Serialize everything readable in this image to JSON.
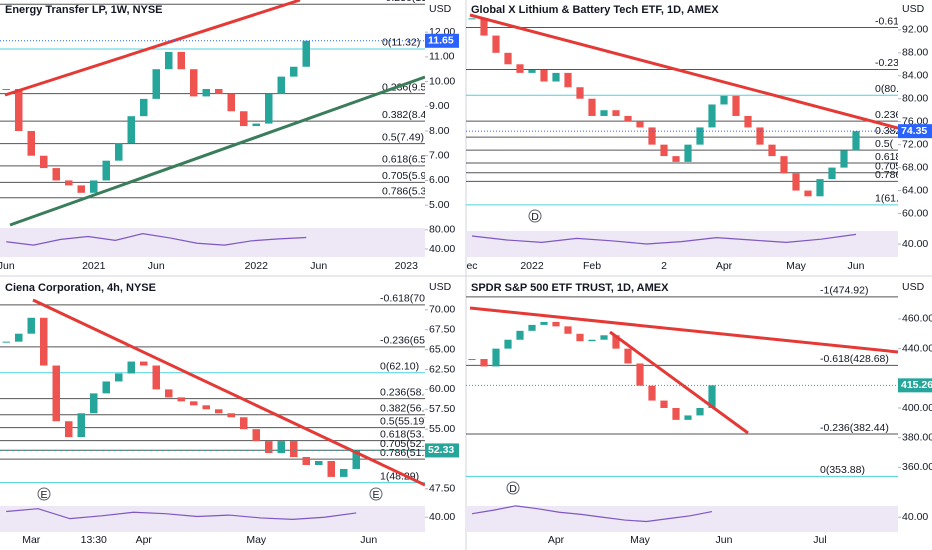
{
  "chart_data": [
    {
      "type": "candlestick",
      "title": "Energy Transfer LP, 1W, NYSE",
      "currency": "USD",
      "categories": [
        "Jun",
        null,
        null,
        null,
        null,
        null,
        null,
        "2021",
        null,
        null,
        null,
        null,
        "Jun",
        null,
        null,
        null,
        null,
        null,
        null,
        null,
        "2022",
        null,
        null,
        null,
        null,
        "Jun",
        null,
        null,
        null,
        null,
        null,
        null,
        "2023",
        null
      ],
      "values": [
        9.7,
        8.0,
        7.0,
        6.5,
        6.0,
        5.8,
        5.5,
        6.0,
        6.8,
        7.5,
        8.6,
        9.3,
        10.5,
        11.2,
        10.5,
        9.4,
        9.7,
        9.5,
        8.8,
        8.2,
        8.3,
        9.5,
        10.2,
        10.6,
        11.65,
        null,
        null,
        null,
        null,
        null,
        null,
        null,
        null,
        null
      ],
      "ylim": [
        4.4,
        13.3
      ],
      "yticks": [
        {
          "value": 12,
          "label": "12.00"
        },
        {
          "value": 11,
          "label": "11.00"
        },
        {
          "value": 10,
          "label": "10.00"
        },
        {
          "value": 9,
          "label": "9.00"
        },
        {
          "value": 8,
          "label": "8.00"
        },
        {
          "value": 7,
          "label": "7.00"
        },
        {
          "value": 6,
          "label": "6.00"
        },
        {
          "value": 5,
          "label": "5.00"
        }
      ],
      "levels": [
        {
          "value": 13.13,
          "label": "-0.236(13.1",
          "color": "#555555"
        },
        {
          "value": 11.32,
          "label": "0(11.32)",
          "color": "#4dd0e1"
        },
        {
          "value": 9.51,
          "label": "0.236(9.51)",
          "color": "#555555"
        },
        {
          "value": 8.4,
          "label": "0.382(8.40)",
          "color": "#555555"
        },
        {
          "value": 7.49,
          "label": "0.5(7.49)",
          "color": "#555555"
        },
        {
          "value": 6.59,
          "label": "0.618(6.59)",
          "color": "#555555"
        },
        {
          "value": 5.92,
          "label": "0.705(5.92)",
          "color": "#555555"
        },
        {
          "value": 5.3,
          "label": "0.786(5.30)",
          "color": "#555555"
        }
      ],
      "tag_color": "#2962ff",
      "up_color": "#26a69a",
      "down_color": "#ef5350",
      "oscillator": {
        "ylim": [
          17,
          90
        ],
        "yticks": [
          {
            "value": 80,
            "label": "80.00"
          },
          {
            "value": 40,
            "label": "40.00"
          }
        ],
        "values": [
          55,
          48,
          60,
          66,
          58,
          72,
          63,
          52,
          48,
          57,
          61,
          64
        ],
        "color": "#7e57c2"
      },
      "events": []
    },
    {
      "type": "candlestick",
      "title": "Global X Lithium & Battery Tech ETF, 1D, AMEX",
      "currency": "USD",
      "categories": [
        "ec",
        null,
        null,
        null,
        null,
        "2022",
        null,
        null,
        null,
        null,
        "Feb",
        null,
        null,
        null,
        null,
        null,
        "2",
        null,
        null,
        null,
        null,
        "Apr",
        null,
        null,
        null,
        null,
        null,
        "May",
        null,
        null,
        null,
        null,
        "Jun",
        null,
        null,
        null
      ],
      "values": [
        94,
        91,
        88,
        86,
        84.5,
        85,
        83,
        84.5,
        82,
        80,
        77,
        78,
        77,
        76,
        75,
        72,
        70,
        69,
        72,
        75,
        79,
        80.5,
        77,
        75,
        72,
        70,
        67,
        64,
        63,
        66,
        68,
        71,
        74.35,
        null,
        null,
        null
      ],
      "ylim": [
        58,
        97.2
      ],
      "yticks": [
        {
          "value": 92,
          "label": "92.00"
        },
        {
          "value": 88,
          "label": "88.00"
        },
        {
          "value": 84,
          "label": "84.00"
        },
        {
          "value": 80,
          "label": "80.00"
        },
        {
          "value": 76,
          "label": "76.00"
        },
        {
          "value": 72,
          "label": "72.00"
        },
        {
          "value": 68,
          "label": "68.00"
        },
        {
          "value": 64,
          "label": "64.00"
        },
        {
          "value": 60,
          "label": "60.00"
        }
      ],
      "levels": [
        {
          "value": 92.4,
          "label": "-0.61",
          "color": "#555555"
        },
        {
          "value": 85.1,
          "label": "-0.23",
          "color": "#555555"
        },
        {
          "value": 80.6,
          "label": "0(80.",
          "color": "#4dd0e1"
        },
        {
          "value": 76.1,
          "label": "0.236",
          "color": "#555555"
        },
        {
          "value": 73.3,
          "label": "0.382",
          "color": "#555555"
        },
        {
          "value": 71.05,
          "label": "0.5(",
          "color": "#555555"
        },
        {
          "value": 68.8,
          "label": "0.618",
          "color": "#555555"
        },
        {
          "value": 67.1,
          "label": "0.705",
          "color": "#555555"
        },
        {
          "value": 65.6,
          "label": "0.786",
          "color": "#555555"
        },
        {
          "value": 61.5,
          "label": "1(61.",
          "color": "#4dd0e1"
        }
      ],
      "tag_color": "#2962ff",
      "up_color": "#26a69a",
      "down_color": "#ef5350",
      "oscillator": {
        "ylim": [
          20,
          60
        ],
        "yticks": [
          {
            "value": 40,
            "label": "40.00"
          }
        ],
        "values": [
          50,
          45,
          42,
          47,
          44,
          40,
          43,
          48,
          45,
          42,
          46,
          52
        ],
        "color": "#7e57c2"
      },
      "events": [
        "D"
      ]
    },
    {
      "type": "candlestick",
      "title": "Ciena Corporation, 4h, NYSE",
      "currency": "USD",
      "categories": [
        null,
        null,
        "Mar",
        null,
        null,
        null,
        null,
        "13:30",
        null,
        null,
        null,
        "Apr",
        null,
        null,
        null,
        null,
        null,
        null,
        null,
        null,
        "May",
        null,
        null,
        null,
        null,
        null,
        null,
        null,
        null,
        "Jun",
        null,
        null,
        null,
        null
      ],
      "values": [
        66,
        67,
        69,
        63,
        56,
        54,
        57,
        59.5,
        61,
        62,
        63.5,
        63,
        60,
        59,
        58.5,
        58,
        57.5,
        57,
        56.5,
        55,
        53.5,
        52,
        53.5,
        51.5,
        50.5,
        51,
        49,
        50,
        52.33,
        null,
        null,
        null,
        null,
        null
      ],
      "ylim": [
        46.1,
        74
      ],
      "yticks": [
        {
          "value": 70,
          "label": "70.00"
        },
        {
          "value": 67.5,
          "label": "67.50"
        },
        {
          "value": 65,
          "label": "65.00"
        },
        {
          "value": 62.5,
          "label": "62.50"
        },
        {
          "value": 60,
          "label": "60.00"
        },
        {
          "value": 57.5,
          "label": "57.50"
        },
        {
          "value": 55,
          "label": "55.00"
        },
        {
          "value": 47.5,
          "label": "47.50"
        }
      ],
      "levels": [
        {
          "value": 70.63,
          "label": "-0.618(70.6",
          "color": "#555555"
        },
        {
          "value": 65.35,
          "label": "-0.236(65.35",
          "color": "#555555"
        },
        {
          "value": 62.1,
          "label": "0(62.10)",
          "color": "#4dd0e1"
        },
        {
          "value": 58.84,
          "label": "0.236(58.84",
          "color": "#555555"
        },
        {
          "value": 56.82,
          "label": "0.382(56.82",
          "color": "#555555"
        },
        {
          "value": 55.19,
          "label": "0.5(55.19)",
          "color": "#555555"
        },
        {
          "value": 53.56,
          "label": "0.618(53.56",
          "color": "#555555"
        },
        {
          "value": 52.36,
          "label": "0.705(52.36",
          "color": "#555555"
        },
        {
          "value": 51.24,
          "label": "0.786(51.24",
          "color": "#555555"
        },
        {
          "value": 48.29,
          "label": "1(48.29)",
          "color": "#4dd0e1"
        }
      ],
      "tag_color": "#26a69a",
      "up_color": "#26a69a",
      "down_color": "#ef5350",
      "oscillator": {
        "ylim": [
          15,
          60
        ],
        "yticks": [
          {
            "value": 40,
            "label": "40.00"
          }
        ],
        "values": [
          48,
          52,
          38,
          42,
          47,
          45,
          41,
          43,
          39,
          37,
          40,
          46
        ],
        "color": "#7e57c2"
      },
      "events": [
        "E",
        "E"
      ]
    },
    {
      "type": "candlestick",
      "title": "SPDR S&P 500 ETF TRUST, 1D, AMEX",
      "currency": "USD",
      "categories": [
        null,
        null,
        null,
        null,
        null,
        null,
        null,
        "Apr",
        null,
        null,
        null,
        null,
        null,
        null,
        "May",
        null,
        null,
        null,
        null,
        null,
        null,
        "Jun",
        null,
        null,
        null,
        null,
        null,
        null,
        null,
        "Jul",
        null,
        null,
        null,
        null,
        null,
        null
      ],
      "values": [
        433,
        428,
        440,
        446,
        452,
        456,
        458,
        455,
        450,
        445,
        446,
        449,
        440,
        430,
        415,
        405,
        400,
        392,
        395,
        400,
        415.26,
        null,
        null,
        null,
        null,
        null,
        null,
        null,
        null,
        null,
        null,
        null,
        null,
        null,
        null,
        null
      ],
      "ylim": [
        338,
        487.6
      ],
      "yticks": [
        {
          "value": 460,
          "label": "460.00"
        },
        {
          "value": 440,
          "label": "440.00"
        },
        {
          "value": 400,
          "label": "400.00"
        },
        {
          "value": 380,
          "label": "380.00"
        },
        {
          "value": 360,
          "label": "360.00"
        }
      ],
      "levels": [
        {
          "value": 474.92,
          "label": "-1(474.92)",
          "color": "#555555"
        },
        {
          "value": 428.68,
          "label": "-0.618(428.68)",
          "color": "#555555"
        },
        {
          "value": 382.44,
          "label": "-0.236(382.44)",
          "color": "#555555"
        },
        {
          "value": 353.88,
          "label": "0(353.88)",
          "color": "#4dd0e1"
        }
      ],
      "tag_color": "#26a69a",
      "up_color": "#26a69a",
      "down_color": "#ef5350",
      "oscillator": {
        "ylim": [
          15,
          60
        ],
        "yticks": [
          {
            "value": 40,
            "label": "40.00"
          }
        ],
        "values": [
          45,
          50,
          56,
          52,
          47,
          44,
          40,
          36,
          34,
          38,
          42,
          48
        ],
        "color": "#7e57c2"
      },
      "events": [
        "D"
      ]
    }
  ]
}
